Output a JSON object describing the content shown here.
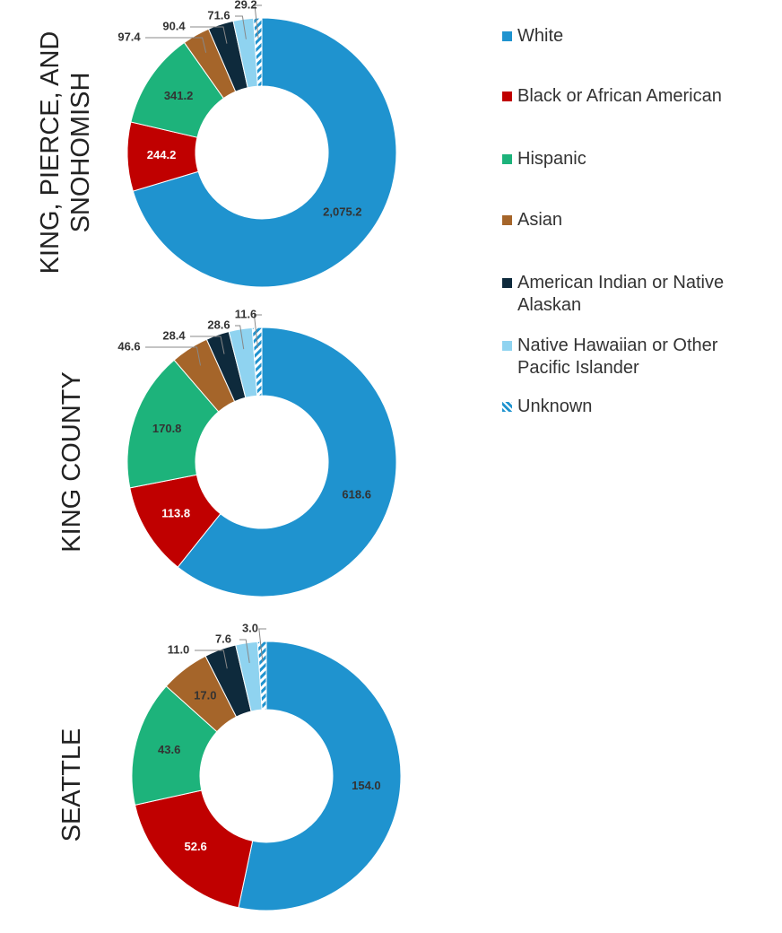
{
  "chart_data": [
    {
      "type": "donut",
      "title": "KING, PIERCE, AND SNOHOMISH",
      "categories": [
        "White",
        "Black or African American",
        "Hispanic",
        "Asian",
        "American Indian or Native Alaskan",
        "Native Hawaiian or Other Pacific Islander",
        "Unknown"
      ],
      "colors": [
        "#1f93cf",
        "#c00000",
        "#1db37b",
        "#a5652a",
        "#0e2a3c",
        "#8fd3f0",
        "#1f93cf"
      ],
      "hatched": [
        false,
        false,
        false,
        false,
        false,
        false,
        true
      ],
      "values": [
        2075.2,
        244.2,
        341.2,
        97.4,
        90.4,
        71.6,
        29.2
      ],
      "value_labels": [
        "2,075.2",
        "244.2",
        "341.2",
        "97.4",
        "90.4",
        "71.6",
        "29.2"
      ]
    },
    {
      "type": "donut",
      "title": "KING COUNTY",
      "values": [
        618.6,
        113.8,
        170.8,
        46.6,
        28.4,
        28.6,
        11.6
      ],
      "value_labels": [
        "618.6",
        "113.8",
        "170.8",
        "46.6",
        "28.4",
        "28.6",
        "11.6"
      ]
    },
    {
      "type": "donut",
      "title": "SEATTLE",
      "values": [
        154.0,
        52.6,
        43.6,
        17.0,
        11.0,
        7.6,
        3.0
      ],
      "value_labels": [
        "154.0",
        "52.6",
        "43.6",
        "17.0",
        "11.0",
        "7.6",
        "3.0"
      ]
    }
  ]
}
